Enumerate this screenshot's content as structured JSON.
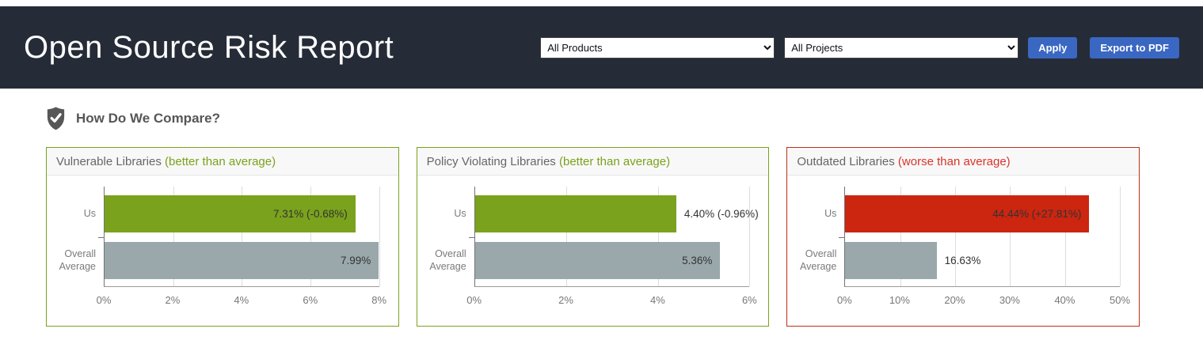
{
  "header": {
    "title": "Open Source Risk Report",
    "background_color": "#252c37",
    "products_dropdown": {
      "selected": "All Products"
    },
    "projects_dropdown": {
      "selected": "All Projects"
    },
    "apply_button": "Apply",
    "export_button": "Export to PDF",
    "button_color": "#3a67c2"
  },
  "section": {
    "heading": "How Do We Compare?",
    "icon": "shield-check-icon"
  },
  "chart_data": [
    {
      "type": "bar",
      "orientation": "horizontal",
      "title": "Vulnerable Libraries",
      "status": "(better than average)",
      "status_color": "#7aa21c",
      "border_color": "#7aa21c",
      "categories": [
        "Us",
        "Overall Average"
      ],
      "values": [
        7.31,
        7.99
      ],
      "value_labels": [
        "7.31% (-0.68%)",
        "7.99%"
      ],
      "label_placement": [
        "inside",
        "inside"
      ],
      "bar_colors": [
        "#7aa21c",
        "#9aa8ac"
      ],
      "xlabel": "",
      "ylabel": "",
      "xlim": [
        0,
        8
      ],
      "tick_values": [
        0,
        2,
        4,
        6,
        8
      ],
      "tick_labels": [
        "0%",
        "2%",
        "4%",
        "6%",
        "8%"
      ],
      "grid": true,
      "legend": false
    },
    {
      "type": "bar",
      "orientation": "horizontal",
      "title": "Policy Violating Libraries",
      "status": "(better than average)",
      "status_color": "#7aa21c",
      "border_color": "#7aa21c",
      "categories": [
        "Us",
        "Overall Average"
      ],
      "values": [
        4.4,
        5.36
      ],
      "value_labels": [
        "4.40% (-0.96%)",
        "5.36%"
      ],
      "label_placement": [
        "outside",
        "inside"
      ],
      "bar_colors": [
        "#7aa21c",
        "#9aa8ac"
      ],
      "xlabel": "",
      "ylabel": "",
      "xlim": [
        0,
        6
      ],
      "tick_values": [
        0,
        2,
        4,
        6
      ],
      "tick_labels": [
        "0%",
        "2%",
        "4%",
        "6%"
      ],
      "grid": true,
      "legend": false
    },
    {
      "type": "bar",
      "orientation": "horizontal",
      "title": "Outdated Libraries",
      "status": "(worse than average)",
      "status_color": "#d9342b",
      "border_color": "#bf2e1a",
      "categories": [
        "Us",
        "Overall Average"
      ],
      "values": [
        44.44,
        16.63
      ],
      "value_labels": [
        "44.44% (+27.81%)",
        "16.63%"
      ],
      "label_placement": [
        "inside",
        "outside"
      ],
      "bar_colors": [
        "#cc2510",
        "#9aa8ac"
      ],
      "xlabel": "",
      "ylabel": "",
      "xlim": [
        0,
        50
      ],
      "tick_values": [
        0,
        10,
        20,
        30,
        40,
        50
      ],
      "tick_labels": [
        "0%",
        "10%",
        "20%",
        "30%",
        "40%",
        "50%"
      ],
      "grid": true,
      "legend": false
    }
  ]
}
